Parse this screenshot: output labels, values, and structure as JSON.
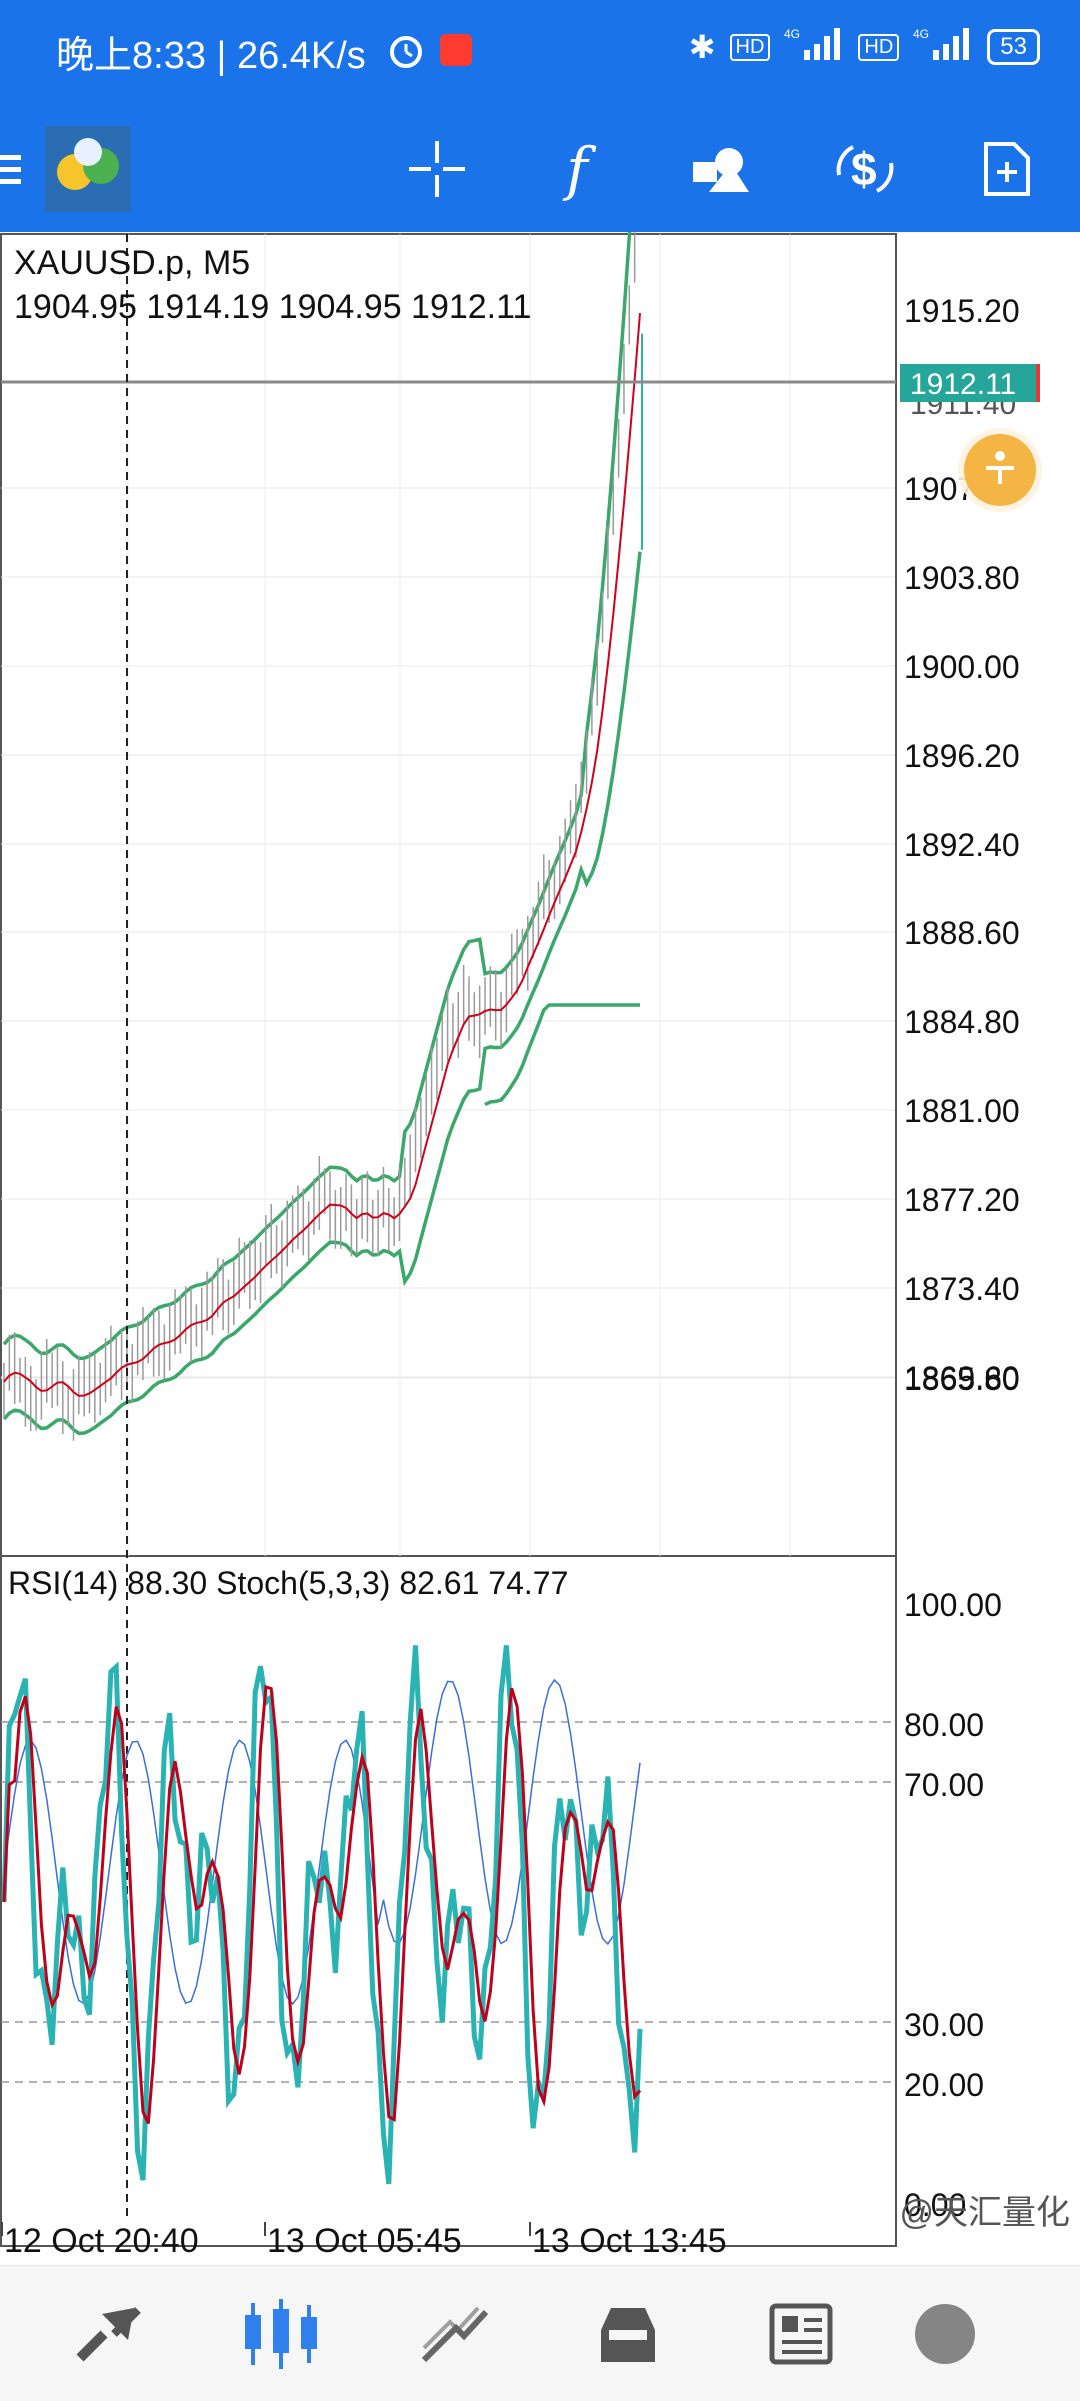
{
  "status_bar": {
    "time": "晚上8:33 | 26.4K/s",
    "battery": "53",
    "icons": [
      "alarm-icon",
      "app-notification-icon",
      "bluetooth-icon",
      "hd-icon",
      "signal-4g-icon",
      "hd-icon",
      "signal-4g-icon",
      "battery-icon"
    ],
    "signal_labels": [
      "HD",
      "4G",
      "HD",
      "4G"
    ]
  },
  "toolbar": {
    "items": [
      "menu-icon",
      "app-logo-icon",
      "crosshair-icon",
      "indicators-icon",
      "objects-icon",
      "trade-icon",
      "new-order-icon"
    ],
    "indicators_glyph": "f"
  },
  "chart": {
    "symbol_line": "XAUUSD.p, M5",
    "ohlc_line": "1904.95 1914.19 1904.95 1912.11",
    "current_price": "1912.11",
    "hidden_price_label": "1911.40",
    "price_levels": [
      "1915.20",
      "1907.60",
      "1903.80",
      "1900.00",
      "1896.20",
      "1892.40",
      "1888.60",
      "1884.80",
      "1881.00",
      "1877.20",
      "1873.40",
      "1869.60",
      "1865.80"
    ],
    "indicator_header": "RSI(14) 88.30 Stoch(5,3,3) 82.61 74.77",
    "indicator_levels": [
      "100.00",
      "80.00",
      "70.00",
      "30.00",
      "20.00",
      "0.00"
    ],
    "time_labels": [
      "12 Oct 20:40",
      "13 Oct 05:45",
      "13 Oct 13:45"
    ],
    "colors": {
      "bollinger": "#3aa86a",
      "ma": "#d0021b",
      "current_price_bg": "#26a69a",
      "rsi_line": "#3a6fd8",
      "stoch_main": "#2ab3b3",
      "stoch_signal": "#c0001a"
    }
  },
  "bottom_nav": {
    "items": [
      "quotes-icon",
      "chart-icon",
      "trade-icon",
      "history-icon",
      "news-icon"
    ]
  },
  "watermark": "@天汇量化"
}
